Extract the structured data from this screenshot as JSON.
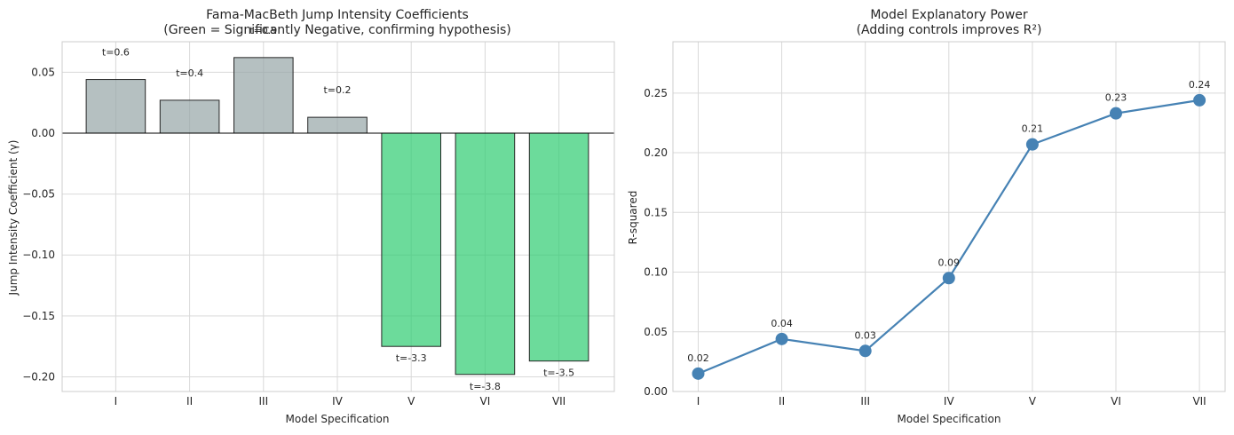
{
  "chart_data": [
    {
      "type": "bar",
      "title": "Fama-MacBeth Jump Intensity Coefficients",
      "subtitle": "(Green = Significantly Negative, confirming hypothesis)",
      "xlabel": "Model Specification",
      "ylabel": "Jump Intensity Coefficient (γ)",
      "categories": [
        "I",
        "II",
        "III",
        "IV",
        "V",
        "VI",
        "VII"
      ],
      "values": [
        0.044,
        0.027,
        0.062,
        0.013,
        -0.175,
        -0.198,
        -0.187
      ],
      "annotations": [
        "t=0.6",
        "t=0.4",
        "t=0.9",
        "t=0.2",
        "t=-3.3",
        "t=-3.8",
        "t=-3.5"
      ],
      "significant": [
        false,
        false,
        false,
        false,
        true,
        true,
        true
      ],
      "colors": {
        "significant": "#2ecc71",
        "insignificant": "#95a5a6",
        "edge": "#262626"
      },
      "ylim": [
        -0.212,
        0.075
      ],
      "yticks": [
        0.05,
        0.0,
        -0.05,
        -0.1,
        -0.15,
        -0.2
      ],
      "ytick_labels": [
        "0.05",
        "0.00",
        "−0.05",
        "−0.10",
        "−0.15",
        "−0.20"
      ],
      "grid": true,
      "zero_line": true
    },
    {
      "type": "line",
      "title": "Model Explanatory Power",
      "subtitle": "(Adding controls improves R²)",
      "xlabel": "Model Specification",
      "ylabel": "R-squared",
      "categories": [
        "I",
        "II",
        "III",
        "IV",
        "V",
        "VI",
        "VII"
      ],
      "values": [
        0.015,
        0.044,
        0.034,
        0.095,
        0.207,
        0.233,
        0.244
      ],
      "point_labels": [
        "0.02",
        "0.04",
        "0.03",
        "0.09",
        "0.21",
        "0.23",
        "0.24"
      ],
      "color": "#4682b4",
      "ylim": [
        0.0,
        0.293
      ],
      "yticks": [
        0.0,
        0.05,
        0.1,
        0.15,
        0.2,
        0.25
      ],
      "ytick_labels": [
        "0.00",
        "0.05",
        "0.10",
        "0.15",
        "0.20",
        "0.25"
      ],
      "grid": true
    }
  ]
}
